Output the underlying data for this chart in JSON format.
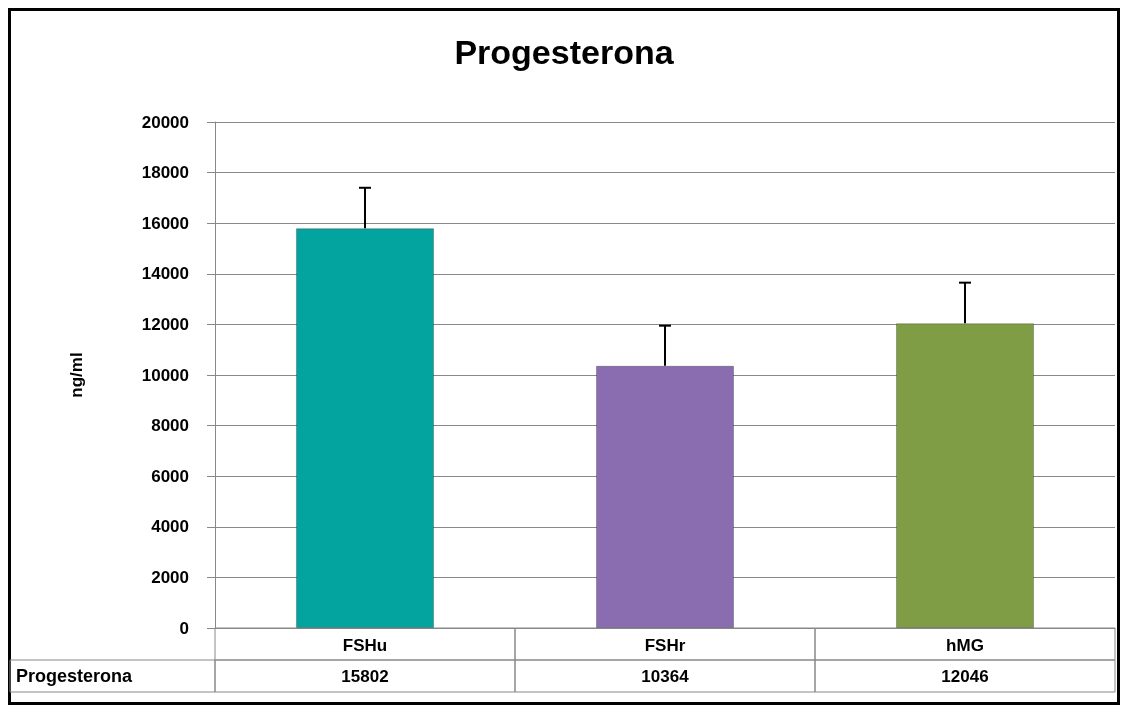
{
  "chart_data": {
    "type": "bar",
    "title": "Progesterona",
    "ylabel": "ng/ml",
    "categories": [
      "FSHu",
      "FSHr",
      "hMG"
    ],
    "series": [
      {
        "name": "Progesterona",
        "values": [
          15802,
          10364,
          12046
        ],
        "colors": [
          "#03a3a0",
          "#8a6db0",
          "#7f9d44"
        ],
        "errors": [
          [
            15802,
            17400
          ],
          [
            10364,
            11950
          ],
          [
            12046,
            13650
          ]
        ]
      }
    ],
    "ylim": [
      0,
      20000
    ],
    "yticks": [
      0,
      2000,
      4000,
      6000,
      8000,
      10000,
      12000,
      14000,
      16000,
      18000,
      20000
    ],
    "grid": "y",
    "data_labels": true,
    "legend": false
  }
}
